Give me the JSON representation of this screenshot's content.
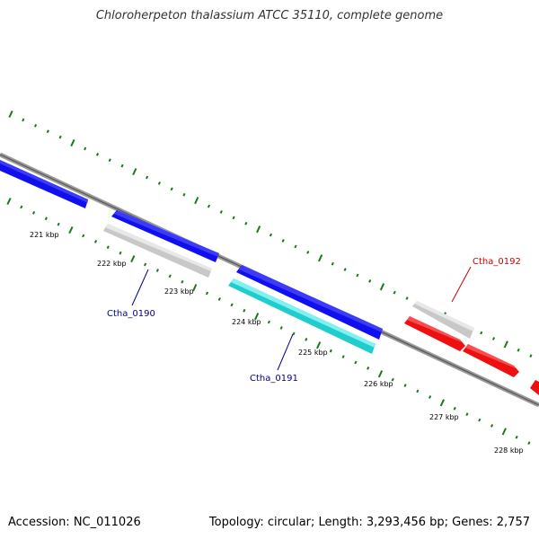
{
  "title": "Chloroherpeton thalassium ATCC 35110, complete genome",
  "accession_text": "Accession: NC_011026",
  "summary_text": "Topology: circular; Length: 3,293,456 bp; Genes: 2,757",
  "colors": {
    "backbone": "#8a8a8a",
    "tick": "#1a7a1a",
    "forward_gene": "#1010ee",
    "gray_gene": "#c0c0c0",
    "cyan_gene": "#20cccc",
    "reverse_gene": "#ee1010",
    "label_blue": "#00008b",
    "label_red": "#cc0000"
  },
  "scale_labels": [
    "221 kbp",
    "222 kbp",
    "223 kbp",
    "224 kbp",
    "225 kbp",
    "226 kbp",
    "227 kbp",
    "228 kbp"
  ],
  "gene_labels": [
    {
      "id": "ctha-0190",
      "text": "Ctha_0190",
      "color": "label_blue"
    },
    {
      "id": "ctha-0191",
      "text": "Ctha_0191",
      "color": "label_blue"
    },
    {
      "id": "ctha-0192",
      "text": "Ctha_0192",
      "color": "label_red"
    }
  ]
}
